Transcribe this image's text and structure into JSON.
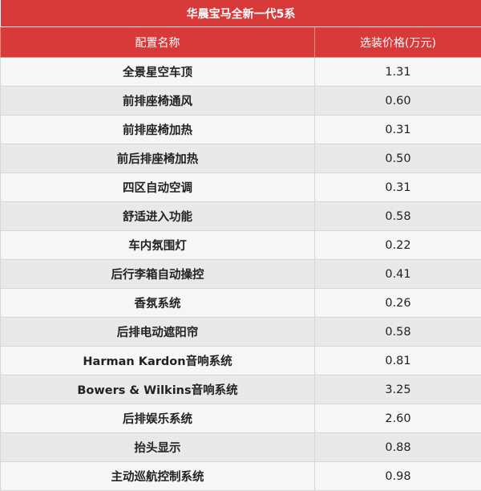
{
  "title": "华晨宝马全新一代5系",
  "headers": {
    "name": "配置名称",
    "price": "选装价格(万元)"
  },
  "rows": [
    {
      "name": "全景星空车顶",
      "price": "1.31"
    },
    {
      "name": "前排座椅通风",
      "price": "0.60"
    },
    {
      "name": "前排座椅加热",
      "price": "0.31"
    },
    {
      "name": "前后排座椅加热",
      "price": "0.50"
    },
    {
      "name": "四区自动空调",
      "price": "0.31"
    },
    {
      "name": "舒适进入功能",
      "price": "0.58"
    },
    {
      "name": "车内氛围灯",
      "price": "0.22"
    },
    {
      "name": "后行李箱自动操控",
      "price": "0.41"
    },
    {
      "name": "香氛系统",
      "price": "0.26"
    },
    {
      "name": "后排电动遮阳帘",
      "price": "0.58"
    },
    {
      "name": "Harman Kardon音响系统",
      "price": "0.81"
    },
    {
      "name": "Bowers & Wilkins音响系统",
      "price": "3.25"
    },
    {
      "name": "后排娱乐系统",
      "price": "2.60"
    },
    {
      "name": "抬头显示",
      "price": "0.88"
    },
    {
      "name": "主动巡航控制系统",
      "price": "0.98"
    }
  ],
  "colors": {
    "header_bg": "#d83a3a",
    "row_odd": "#f6f6f6",
    "row_even": "#e9e9e9"
  }
}
